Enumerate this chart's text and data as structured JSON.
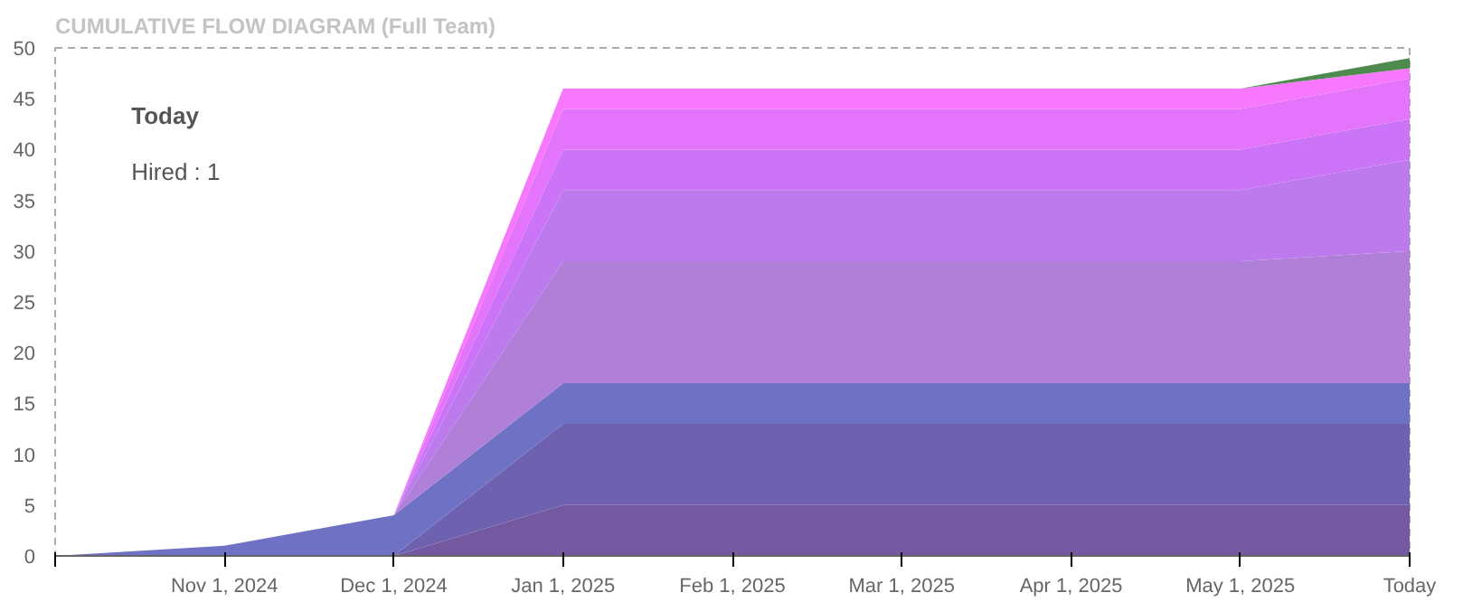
{
  "chart_data": {
    "type": "area",
    "title": "CUMULATIVE FLOW DIAGRAM (Full Team)",
    "stacked": true,
    "categories": [
      null,
      "Nov 1, 2024",
      "Dec 1, 2024",
      "Jan 1, 2025",
      "Feb 1, 2025",
      "Mar 1, 2025",
      "Apr 1, 2025",
      "May 1, 2025",
      "Today"
    ],
    "series": [
      {
        "color": "#7459a0",
        "values": [
          0,
          0,
          0,
          5,
          5,
          5,
          5,
          5,
          5
        ]
      },
      {
        "color": "#6e62b0",
        "values": [
          0,
          0,
          0,
          8,
          8,
          8,
          8,
          8,
          8
        ]
      },
      {
        "color": "#6f72c4",
        "values": [
          0,
          1,
          4,
          4,
          4,
          4,
          4,
          4,
          4
        ]
      },
      {
        "color": "#b07fd8",
        "values": [
          0,
          0,
          0,
          12,
          12,
          12,
          12,
          12,
          13
        ]
      },
      {
        "color": "#bc7aec",
        "values": [
          0,
          0,
          0,
          7,
          7,
          7,
          7,
          7,
          9
        ]
      },
      {
        "color": "#cc74f8",
        "values": [
          0,
          0,
          0,
          4,
          4,
          4,
          4,
          4,
          4
        ]
      },
      {
        "color": "#e474fb",
        "values": [
          0,
          0,
          0,
          4,
          4,
          4,
          4,
          4,
          4
        ]
      },
      {
        "color": "#f777fd",
        "values": [
          0,
          0,
          0,
          2,
          2,
          2,
          2,
          2,
          1
        ]
      },
      {
        "color": "#4e8a4e",
        "values": [
          0,
          0,
          0,
          0,
          0,
          0,
          0,
          0,
          1
        ]
      }
    ],
    "ylim": [
      0,
      50
    ],
    "yticks": [
      0,
      5,
      10,
      15,
      20,
      25,
      30,
      35,
      40,
      45,
      50
    ],
    "grid": false,
    "annotations": [
      "Today",
      "Hired : 1"
    ]
  }
}
